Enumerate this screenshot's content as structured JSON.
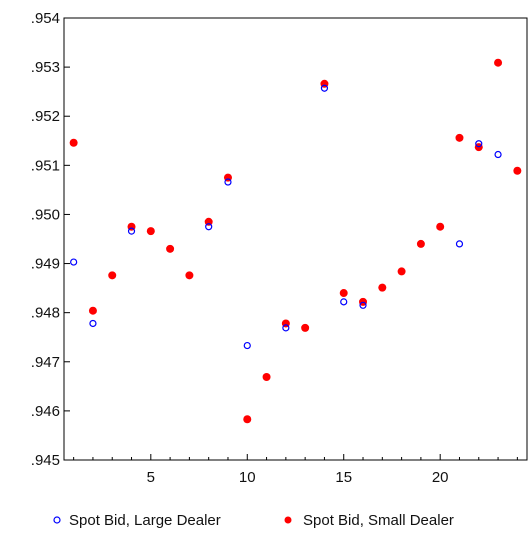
{
  "chart_data": {
    "type": "scatter",
    "title": "",
    "xlabel": "",
    "ylabel": "",
    "xlim": [
      0.5,
      24.5
    ],
    "ylim": [
      0.945,
      0.954
    ],
    "x_ticks": [
      5,
      10,
      15,
      20
    ],
    "x_tick_labels": [
      "5",
      "10",
      "15",
      "20"
    ],
    "y_ticks": [
      0.945,
      0.946,
      0.947,
      0.948,
      0.949,
      0.95,
      0.951,
      0.952,
      0.953,
      0.954
    ],
    "y_tick_labels": [
      ".945",
      ".946",
      ".947",
      ".948",
      ".949",
      ".950",
      ".951",
      ".952",
      ".953",
      ".954"
    ],
    "grid": false,
    "legend_position": "bottom",
    "series": [
      {
        "name": "Spot Bid, Large Dealer",
        "marker": "open-circle",
        "color": "#0000ff",
        "points": [
          [
            1,
            0.94903
          ],
          [
            2,
            0.94778
          ],
          [
            4,
            0.94966
          ],
          [
            8,
            0.94975
          ],
          [
            9,
            0.95066
          ],
          [
            10,
            0.94733
          ],
          [
            12,
            0.94769
          ],
          [
            14,
            0.95257
          ],
          [
            15,
            0.94822
          ],
          [
            16,
            0.94815
          ],
          [
            21,
            0.9494
          ],
          [
            22,
            0.95144
          ],
          [
            23,
            0.95122
          ]
        ]
      },
      {
        "name": "Spot Bid, Small Dealer",
        "marker": "filled-circle",
        "color": "#ff0000",
        "points": [
          [
            1,
            0.95146
          ],
          [
            2,
            0.94804
          ],
          [
            3,
            0.94876
          ],
          [
            4,
            0.94975
          ],
          [
            5,
            0.94966
          ],
          [
            6,
            0.9493
          ],
          [
            7,
            0.94876
          ],
          [
            8,
            0.94985
          ],
          [
            9,
            0.95075
          ],
          [
            10,
            0.94583
          ],
          [
            11,
            0.94669
          ],
          [
            12,
            0.94778
          ],
          [
            13,
            0.94769
          ],
          [
            14,
            0.95266
          ],
          [
            15,
            0.9484
          ],
          [
            16,
            0.94822
          ],
          [
            17,
            0.94851
          ],
          [
            18,
            0.94884
          ],
          [
            19,
            0.9494
          ],
          [
            20,
            0.94975
          ],
          [
            21,
            0.95156
          ],
          [
            22,
            0.95137
          ],
          [
            23,
            0.95309
          ],
          [
            24,
            0.95089
          ]
        ]
      }
    ]
  }
}
